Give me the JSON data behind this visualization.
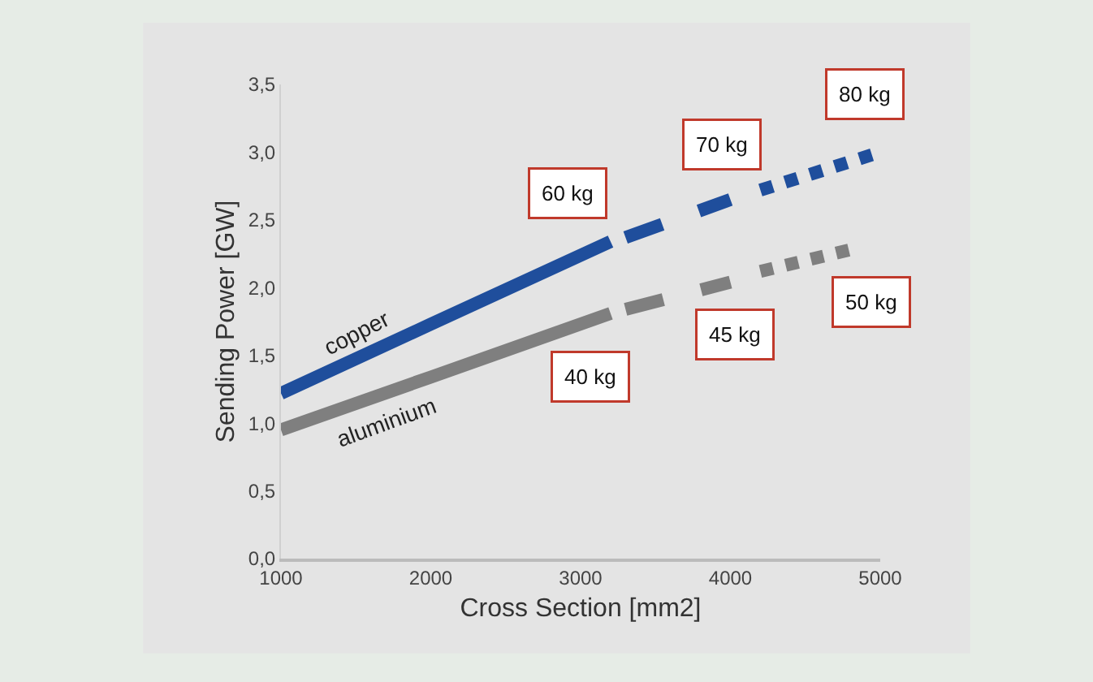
{
  "chart_data": {
    "type": "line",
    "xlabel": "Cross Section [mm2]",
    "ylabel": "Sending Power [GW]",
    "xlim": [
      1000,
      5000
    ],
    "xticks": [
      1000,
      2000,
      3000,
      4000,
      5000
    ],
    "ylim": [
      0,
      3.5
    ],
    "yticks": [
      {
        "value": 0,
        "label": "0,0"
      },
      {
        "value": 0.5,
        "label": "0,5"
      },
      {
        "value": 1,
        "label": "1,0"
      },
      {
        "value": 1.5,
        "label": "1,5"
      },
      {
        "value": 2,
        "label": "2,0"
      },
      {
        "value": 2.5,
        "label": "2,5"
      },
      {
        "value": 3,
        "label": "3,0"
      },
      {
        "value": 3.5,
        "label": "3,5"
      }
    ],
    "grid": false,
    "legend": false,
    "marker": "none",
    "series": [
      {
        "name": "copper",
        "color": "#1f4e9c",
        "line_style": "solid",
        "x": [
          1000,
          2000,
          3200
        ],
        "values": [
          1.22,
          1.73,
          2.34
        ]
      },
      {
        "color": "#1f4e9c",
        "line_style": "dashed",
        "x": [
          3300,
          4000
        ],
        "values": [
          2.37,
          2.65
        ]
      },
      {
        "color": "#1f4e9c",
        "line_style": "dotted",
        "x": [
          4200,
          5000
        ],
        "values": [
          2.72,
          3.0
        ]
      },
      {
        "name": "aluminium",
        "color": "#7f7f7f",
        "line_style": "solid",
        "x": [
          1000,
          2000,
          3200
        ],
        "values": [
          0.95,
          1.34,
          1.81
        ]
      },
      {
        "color": "#7f7f7f",
        "line_style": "dashed",
        "x": [
          3300,
          4000
        ],
        "values": [
          1.84,
          2.04
        ]
      },
      {
        "color": "#7f7f7f",
        "line_style": "dotted",
        "x": [
          4200,
          4800
        ],
        "values": [
          2.12,
          2.28
        ]
      }
    ],
    "annotations": [
      {
        "text": "60 kg",
        "x": 3200,
        "y": 2.34
      },
      {
        "text": "70 kg",
        "x": 4000,
        "y": 2.65
      },
      {
        "text": "80 kg",
        "x": 5000,
        "y": 3.0
      },
      {
        "text": "40 kg",
        "x": 3200,
        "y": 1.81
      },
      {
        "text": "45 kg",
        "x": 4000,
        "y": 2.04
      },
      {
        "text": "50 kg",
        "x": 4800,
        "y": 2.28
      }
    ]
  }
}
